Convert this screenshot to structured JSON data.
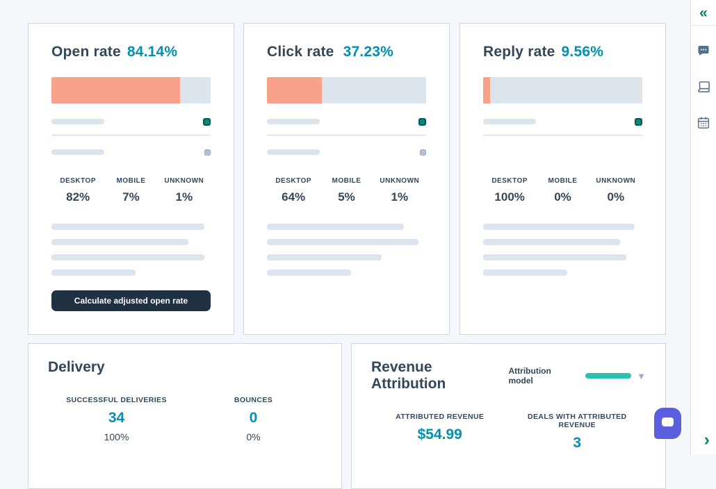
{
  "colors": {
    "accent_teal": "#0091ae",
    "bar_fill_salmon": "#f9a28b",
    "bar_track": "#dde4ec",
    "heading_dark": "#33475b",
    "button_bg": "#203142",
    "legend_square_teal": "#12857a",
    "attr_pill_teal": "#2bc0ad",
    "chat_widget_indigo": "#5a5edf"
  },
  "rate_cards": [
    {
      "title": "Open rate",
      "value": "84.14%",
      "fill_pct": 81,
      "stats": [
        {
          "label": "DESKTOP",
          "value": "82%"
        },
        {
          "label": "MOBILE",
          "value": "7%"
        },
        {
          "label": "UNKNOWN",
          "value": "1%"
        }
      ],
      "skeleton_widths": {
        "0": 96,
        "1": 86,
        "2": 96,
        "3": 53
      },
      "button_label": "Calculate adjusted open rate"
    },
    {
      "title": "Click rate",
      "value": "37.23%",
      "fill_pct": 34.5,
      "stats": [
        {
          "label": "DESKTOP",
          "value": "64%"
        },
        {
          "label": "MOBILE",
          "value": "5%"
        },
        {
          "label": "UNKNOWN",
          "value": "1%"
        }
      ],
      "skeleton_widths": {
        "0": 86,
        "1": 95,
        "2": 72,
        "3": 53
      }
    },
    {
      "title": "Reply rate",
      "value": "9.56%",
      "fill_pct": 4.5,
      "stats": [
        {
          "label": "DESKTOP",
          "value": "100%"
        },
        {
          "label": "MOBILE",
          "value": "0%"
        },
        {
          "label": "UNKNOWN",
          "value": "0%"
        }
      ],
      "skeleton_widths": {
        "0": 95,
        "1": 86,
        "2": 90,
        "3": 53
      }
    }
  ],
  "delivery": {
    "title": "Delivery",
    "stats": [
      {
        "label": "SUCCESSFUL DELIVERIES",
        "value": "34",
        "sub": "100%"
      },
      {
        "label": "BOUNCES",
        "value": "0",
        "sub": "0%"
      }
    ]
  },
  "revenue": {
    "title": "Revenue Attribution",
    "control_label": "Attribution model",
    "caret": "▼",
    "stats": [
      {
        "label": "ATTRIBUTED REVENUE",
        "value": "$54.99"
      },
      {
        "label": "DEALS WITH ATTRIBUTED REVENUE",
        "value": "3"
      }
    ]
  },
  "sidebar": {
    "collapse_glyph": "«",
    "next_glyph": "›",
    "icons": [
      {
        "name": "chat-bubble"
      },
      {
        "name": "laptop"
      },
      {
        "name": "calendar"
      }
    ]
  }
}
